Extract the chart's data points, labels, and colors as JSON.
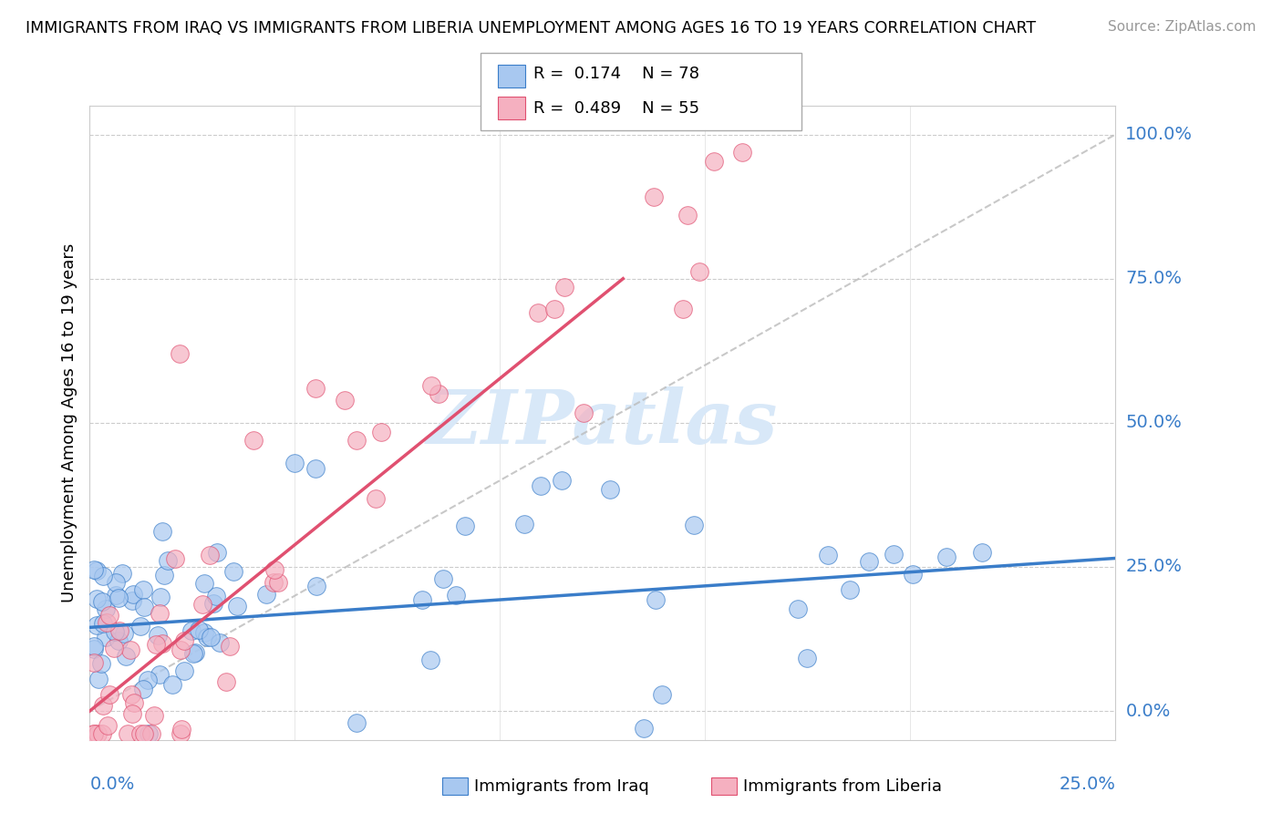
{
  "title": "IMMIGRANTS FROM IRAQ VS IMMIGRANTS FROM LIBERIA UNEMPLOYMENT AMONG AGES 16 TO 19 YEARS CORRELATION CHART",
  "source": "Source: ZipAtlas.com",
  "ylabel": "Unemployment Among Ages 16 to 19 years",
  "iraq_R": 0.174,
  "iraq_N": 78,
  "liberia_R": 0.489,
  "liberia_N": 55,
  "iraq_color": "#A8C8F0",
  "liberia_color": "#F5B0C0",
  "iraq_line_color": "#3A7DC9",
  "liberia_line_color": "#E05070",
  "watermark_color": "#D8E8F8",
  "xlim": [
    0.0,
    0.25
  ],
  "ylim": [
    -0.05,
    1.05
  ],
  "iraq_trend_x0": 0.0,
  "iraq_trend_y0": 0.145,
  "iraq_trend_x1": 0.25,
  "iraq_trend_y1": 0.265,
  "liberia_trend_x0": 0.0,
  "liberia_trend_y0": 0.0,
  "liberia_trend_x1": 0.13,
  "liberia_trend_y1": 0.75,
  "ref_line_x0": 0.0,
  "ref_line_y0": 0.0,
  "ref_line_x1": 0.25,
  "ref_line_y1": 1.0
}
